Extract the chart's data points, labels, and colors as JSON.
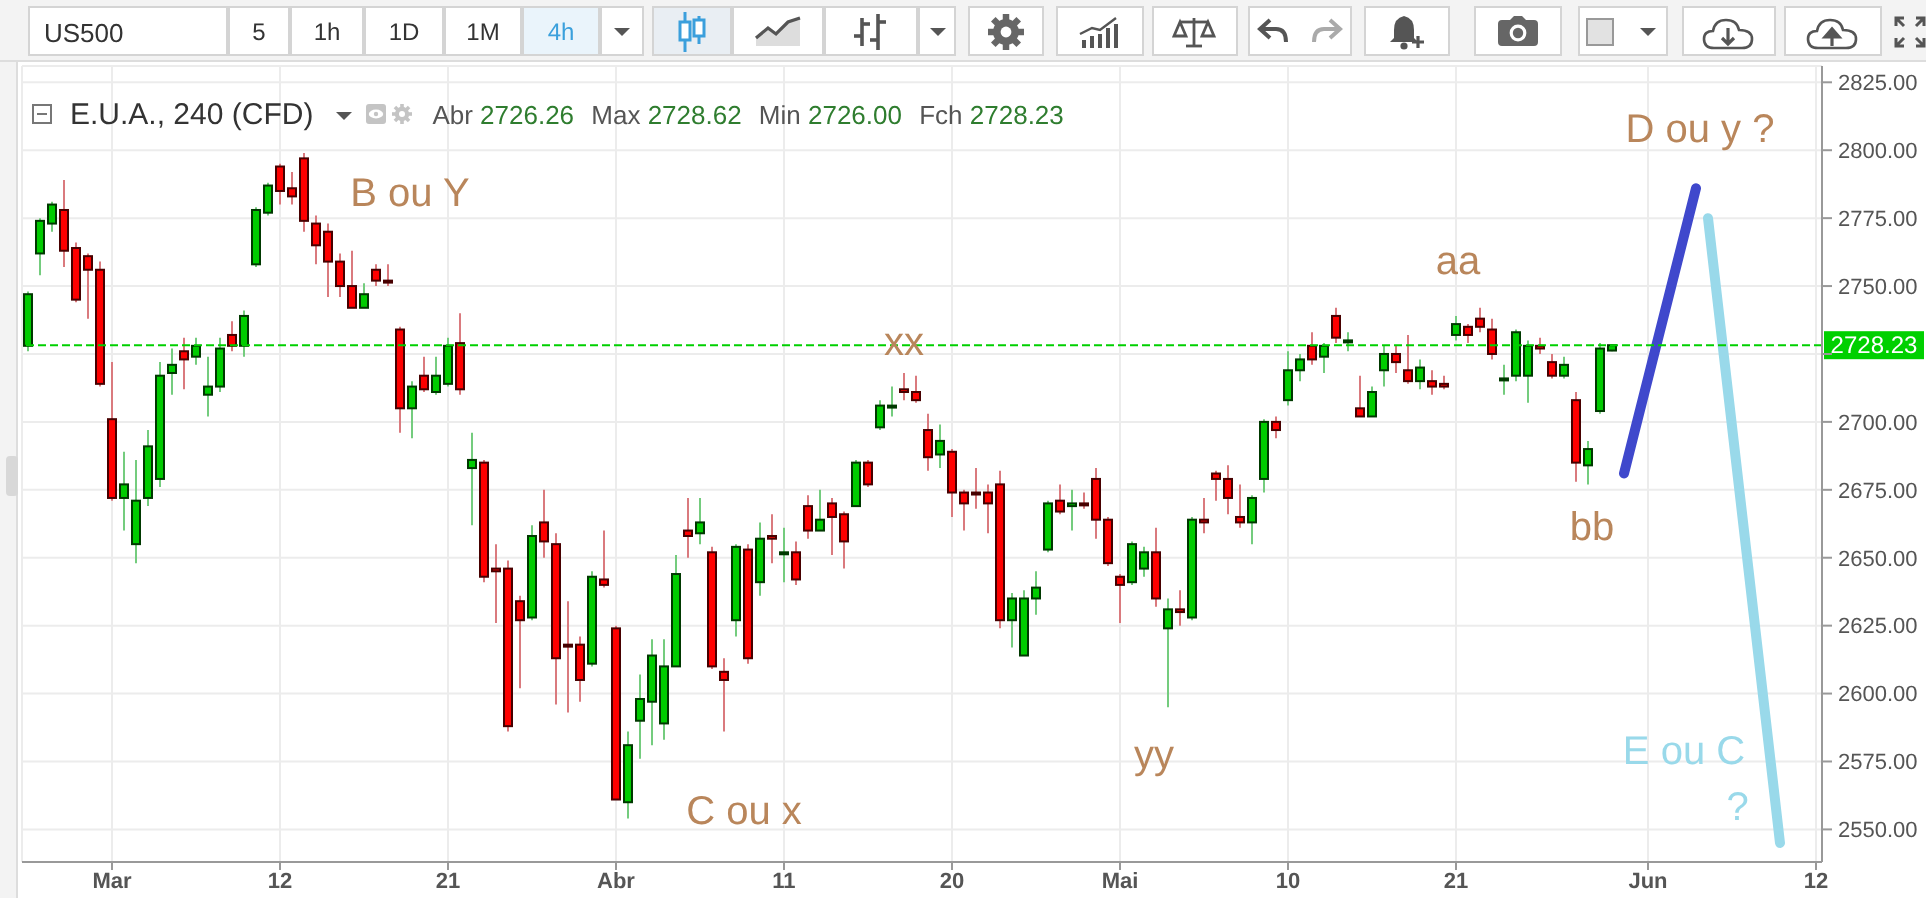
{
  "chart_data": {
    "type": "candlestick",
    "title": "E.U.A., 240 (CFD)",
    "categories": [
      null,
      null,
      null,
      null,
      null,
      null,
      null,
      "Mar",
      null,
      null,
      null,
      null,
      null,
      null,
      null,
      null,
      null,
      null,
      null,
      null,
      null,
      "12",
      null,
      null,
      null,
      null,
      null,
      null,
      null,
      null,
      null,
      null,
      null,
      null,
      null,
      "21",
      null,
      null,
      null,
      null,
      null,
      null,
      null,
      null,
      null,
      null,
      null,
      null,
      null,
      "Abr",
      null,
      null,
      null,
      null,
      null,
      null,
      null,
      null,
      null,
      null,
      null,
      null,
      null,
      "11",
      null,
      null,
      null,
      null,
      null,
      null,
      null,
      null,
      null,
      null,
      null,
      null,
      null,
      "20",
      null,
      null,
      null,
      null,
      null,
      null,
      null,
      null,
      null,
      null,
      null,
      null,
      null,
      "Mai",
      null,
      null,
      null,
      null,
      null,
      null,
      null,
      null,
      null,
      null,
      null,
      null,
      null,
      "10",
      null,
      null,
      null,
      null,
      null,
      null,
      null,
      null,
      null,
      null,
      null,
      null,
      null,
      "21",
      null,
      null,
      null,
      null,
      null,
      null,
      null,
      null,
      null,
      null,
      null,
      null,
      null,
      null,
      null,
      "Jun",
      null,
      null,
      null,
      null,
      null,
      null,
      null,
      null,
      null,
      null,
      null,
      null,
      null,
      "12"
    ],
    "ohlc": [
      [
        2728,
        2748,
        2726,
        2747
      ],
      [
        2762,
        2775,
        2754,
        2774
      ],
      [
        2773,
        2781,
        2770,
        2780
      ],
      [
        2778,
        2789,
        2757,
        2763
      ],
      [
        2764,
        2766,
        2744,
        2745
      ],
      [
        2761,
        2762,
        2738,
        2756
      ],
      [
        2756,
        2759,
        2713,
        2714
      ],
      [
        2701,
        2722,
        2671,
        2672
      ],
      [
        2672,
        2689,
        2660,
        2677
      ],
      [
        2655,
        2686,
        2648,
        2671
      ],
      [
        2672,
        2697,
        2669,
        2691
      ],
      [
        2679,
        2722,
        2676,
        2717
      ],
      [
        2718,
        2727,
        2710,
        2721
      ],
      [
        2726,
        2731,
        2712,
        2723
      ],
      [
        2724,
        2731,
        2721,
        2728
      ],
      [
        2710,
        2724,
        2702,
        2713
      ],
      [
        2713,
        2731,
        2711,
        2727
      ],
      [
        2732,
        2737,
        2726,
        2728
      ],
      [
        2728,
        2741,
        2724,
        2739
      ],
      [
        2758,
        2779,
        2757,
        2778
      ],
      [
        2777,
        2788,
        2776,
        2787
      ],
      [
        2794,
        2795,
        2780,
        2785
      ],
      [
        2786,
        2792,
        2780,
        2783
      ],
      [
        2797,
        2799,
        2770,
        2774
      ],
      [
        2773,
        2776,
        2758,
        2765
      ],
      [
        2770,
        2773,
        2746,
        2759
      ],
      [
        2759,
        2762,
        2746,
        2750
      ],
      [
        2750,
        2763,
        2742,
        2742
      ],
      [
        2742,
        2751,
        2742,
        2747
      ],
      [
        2756,
        2758,
        2750,
        2752
      ],
      [
        2752,
        2758,
        2750,
        2752
      ],
      [
        2734,
        2735,
        2696,
        2705
      ],
      [
        2705,
        2715,
        2694,
        2713
      ],
      [
        2717,
        2724,
        2711,
        2712
      ],
      [
        2711,
        2724,
        2710,
        2717
      ],
      [
        2714,
        2731,
        2713,
        2728
      ],
      [
        2729,
        2740,
        2710,
        2712
      ],
      [
        2683,
        2696,
        2662,
        2686
      ],
      [
        2685,
        2686,
        2641,
        2643
      ],
      [
        2646,
        2655,
        2626,
        2645
      ],
      [
        2646,
        2649,
        2586,
        2588
      ],
      [
        2634,
        2636,
        2602,
        2627
      ],
      [
        2628,
        2662,
        2627,
        2658
      ],
      [
        2663,
        2675,
        2650,
        2656
      ],
      [
        2655,
        2659,
        2596,
        2613
      ],
      [
        2618,
        2634,
        2593,
        2618
      ],
      [
        2618,
        2621,
        2597,
        2605
      ],
      [
        2611,
        2645,
        2610,
        2643
      ],
      [
        2642,
        2660,
        2639,
        2640
      ],
      [
        2624,
        2625,
        2561,
        2561
      ],
      [
        2560,
        2586,
        2554,
        2581
      ],
      [
        2590,
        2607,
        2576,
        2598
      ],
      [
        2597,
        2620,
        2581,
        2614
      ],
      [
        2589,
        2620,
        2583,
        2610
      ],
      [
        2610,
        2651,
        2610,
        2644
      ],
      [
        2660,
        2672,
        2650,
        2658
      ],
      [
        2659,
        2672,
        2655,
        2663
      ],
      [
        2652,
        2654,
        2609,
        2610
      ],
      [
        2608,
        2613,
        2586,
        2605
      ],
      [
        2627,
        2655,
        2621,
        2654
      ],
      [
        2653,
        2655,
        2611,
        2613
      ],
      [
        2641,
        2663,
        2636,
        2657
      ],
      [
        2658,
        2666,
        2648,
        2657
      ],
      [
        2652,
        2661,
        2641,
        2652
      ],
      [
        2652,
        2656,
        2640,
        2642
      ],
      [
        2669,
        2673,
        2657,
        2660
      ],
      [
        2660,
        2675,
        2660,
        2664
      ],
      [
        2670,
        2672,
        2651,
        2665
      ],
      [
        2666,
        2667,
        2646,
        2656
      ],
      [
        2669,
        2686,
        2669,
        2685
      ],
      [
        2685,
        2686,
        2676,
        2677
      ],
      [
        2698,
        2708,
        2697,
        2706
      ],
      [
        2706,
        2713,
        2702,
        2706
      ],
      [
        2712,
        2718,
        2708,
        2711
      ],
      [
        2711,
        2717,
        2707,
        2708
      ],
      [
        2697,
        2703,
        2682,
        2687
      ],
      [
        2688,
        2699,
        2683,
        2693
      ],
      [
        2689,
        2690,
        2665,
        2674
      ],
      [
        2674,
        2675,
        2660,
        2670
      ],
      [
        2674,
        2683,
        2668,
        2674
      ],
      [
        2674,
        2677,
        2659,
        2670
      ],
      [
        2677,
        2682,
        2624,
        2627
      ],
      [
        2627,
        2637,
        2617,
        2635
      ],
      [
        2614,
        2638,
        2614,
        2635
      ],
      [
        2635,
        2645,
        2629,
        2639
      ],
      [
        2653,
        2671,
        2652,
        2670
      ],
      [
        2671,
        2677,
        2666,
        2667
      ],
      [
        2669,
        2675,
        2660,
        2670
      ],
      [
        2670,
        2674,
        2668,
        2670
      ],
      [
        2679,
        2683,
        2657,
        2664
      ],
      [
        2664,
        2665,
        2647,
        2648
      ],
      [
        2643,
        2644,
        2626,
        2640
      ],
      [
        2641,
        2656,
        2640,
        2655
      ],
      [
        2646,
        2654,
        2643,
        2652
      ],
      [
        2652,
        2661,
        2632,
        2635
      ],
      [
        2624,
        2635,
        2595,
        2631
      ],
      [
        2631,
        2638,
        2625,
        2630
      ],
      [
        2628,
        2665,
        2627,
        2664
      ],
      [
        2664,
        2672,
        2659,
        2663
      ],
      [
        2681,
        2682,
        2671,
        2679
      ],
      [
        2679,
        2684,
        2666,
        2672
      ],
      [
        2665,
        2677,
        2661,
        2663
      ],
      [
        2663,
        2673,
        2655,
        2672
      ],
      [
        2679,
        2701,
        2674,
        2700
      ],
      [
        2700,
        2702,
        2694,
        2697
      ],
      [
        2708,
        2726,
        2706,
        2719
      ],
      [
        2719,
        2725,
        2715,
        2723
      ],
      [
        2728,
        2733,
        2721,
        2723
      ],
      [
        2724,
        2729,
        2718,
        2728
      ],
      [
        2739,
        2742,
        2729,
        2731
      ],
      [
        2730,
        2733,
        2726,
        2730
      ],
      [
        2705,
        2717,
        2702,
        2702
      ],
      [
        2702,
        2713,
        2702,
        2711
      ],
      [
        2719,
        2728,
        2713,
        2725
      ],
      [
        2725,
        2728,
        2718,
        2722
      ],
      [
        2719,
        2732,
        2714,
        2715
      ],
      [
        2715,
        2723,
        2712,
        2720
      ],
      [
        2715,
        2719,
        2710,
        2713
      ],
      [
        2714,
        2717,
        2712,
        2713
      ],
      [
        2732,
        2739,
        2730,
        2736
      ],
      [
        2735,
        2736,
        2729,
        2732
      ],
      [
        2738,
        2742,
        2733,
        2735
      ],
      [
        2734,
        2738,
        2723,
        2725
      ],
      [
        2716,
        2721,
        2710,
        2716
      ],
      [
        2717,
        2734,
        2715,
        2733
      ],
      [
        2717,
        2730,
        2707,
        2728
      ],
      [
        2728,
        2731,
        2725,
        2727
      ],
      [
        2722,
        2725,
        2716,
        2717
      ],
      [
        2717,
        2724,
        2716,
        2721
      ],
      [
        2708,
        2711,
        2678,
        2685
      ],
      [
        2684,
        2693,
        2677,
        2690
      ],
      [
        2704,
        2729,
        2703,
        2727
      ],
      [
        2726.26,
        2728.62,
        2726.0,
        2728.23
      ],
      null,
      null,
      null,
      null,
      null,
      null,
      null,
      null,
      null,
      null,
      null,
      null,
      null,
      null,
      null,
      null,
      null
    ],
    "colors": [
      "#00cc00",
      "#00cc00",
      "#00cc00",
      "#ff0000",
      "#ff0000",
      "#ff0000",
      "#ff0000",
      "#ff0000",
      "#00cc00",
      "#00cc00",
      "#00cc00",
      "#00cc00",
      "#00cc00",
      "#ff0000",
      "#00cc00",
      "#00cc00",
      "#00cc00",
      "#ff0000",
      "#00cc00",
      "#00cc00",
      "#00cc00",
      "#ff0000",
      "#ff0000",
      "#ff0000",
      "#ff0000",
      "#ff0000",
      "#ff0000",
      "#ff0000",
      "#00cc00",
      "#ff0000",
      "#ff0000",
      "#ff0000",
      "#00cc00",
      "#ff0000",
      "#00cc00",
      "#00cc00",
      "#ff0000",
      "#00cc00",
      "#ff0000",
      "#ff0000",
      "#ff0000",
      "#ff0000",
      "#00cc00",
      "#ff0000",
      "#ff0000",
      "#ff0000",
      "#ff0000",
      "#00cc00",
      "#ff0000",
      "#ff0000",
      "#00cc00",
      "#00cc00",
      "#00cc00",
      "#00cc00",
      "#00cc00",
      "#ff0000",
      "#00cc00",
      "#ff0000",
      "#ff0000",
      "#00cc00",
      "#ff0000",
      "#00cc00",
      "#ff0000",
      "#00cc00",
      "#ff0000",
      "#ff0000",
      "#00cc00",
      "#ff0000",
      "#ff0000",
      "#00cc00",
      "#ff0000",
      "#00cc00",
      "#00cc00",
      "#ff0000",
      "#ff0000",
      "#ff0000",
      "#00cc00",
      "#ff0000",
      "#ff0000",
      "#ff0000",
      "#ff0000",
      "#ff0000",
      "#00cc00",
      "#00cc00",
      "#00cc00",
      "#00cc00",
      "#ff0000",
      "#00cc00",
      "#ff0000",
      "#ff0000",
      "#ff0000",
      "#ff0000",
      "#00cc00",
      "#00cc00",
      "#ff0000",
      "#00cc00",
      "#ff0000",
      "#00cc00",
      "#ff0000",
      "#ff0000",
      "#ff0000",
      "#ff0000",
      "#00cc00",
      "#00cc00",
      "#ff0000",
      "#00cc00",
      "#00cc00",
      "#ff0000",
      "#00cc00",
      "#ff0000",
      "#00cc00",
      "#ff0000",
      "#00cc00",
      "#00cc00",
      "#ff0000",
      "#ff0000",
      "#00cc00",
      "#ff0000",
      "#ff0000",
      "#00cc00",
      "#ff0000",
      "#ff0000",
      "#ff0000",
      "#00cc00",
      "#00cc00",
      "#00cc00",
      "#ff0000",
      "#ff0000",
      "#00cc00",
      "#ff0000",
      "#00cc00",
      "#00cc00",
      "#00cc00",
      null,
      null,
      null,
      null,
      null,
      null,
      null,
      null,
      null,
      null,
      null,
      null,
      null,
      null,
      null,
      null,
      null
    ],
    "series": [
      {
        "type": "line",
        "color": "#3f48cc",
        "values": [
          null,
          null,
          null,
          null,
          null,
          null,
          null,
          null,
          null,
          null,
          null,
          null,
          null,
          null,
          null,
          null,
          null,
          null,
          null,
          null,
          null,
          null,
          null,
          null,
          null,
          null,
          null,
          null,
          null,
          null,
          null,
          null,
          null,
          null,
          null,
          null,
          null,
          null,
          null,
          null,
          null,
          null,
          null,
          null,
          null,
          null,
          null,
          null,
          null,
          null,
          null,
          null,
          null,
          null,
          null,
          null,
          null,
          null,
          null,
          null,
          null,
          null,
          null,
          null,
          null,
          null,
          null,
          null,
          null,
          null,
          null,
          null,
          null,
          null,
          null,
          null,
          null,
          null,
          null,
          null,
          null,
          null,
          null,
          null,
          null,
          null,
          null,
          null,
          null,
          null,
          null,
          null,
          null,
          null,
          null,
          null,
          null,
          null,
          null,
          null,
          null,
          null,
          null,
          null,
          null,
          null,
          null,
          null,
          null,
          null,
          null,
          null,
          null,
          null,
          null,
          null,
          null,
          null,
          null,
          null,
          null,
          null,
          null,
          null,
          null,
          null,
          null,
          null,
          null,
          null,
          null,
          null,
          null,
          2681,
          null,
          null,
          null,
          null,
          null,
          2786,
          null,
          null,
          null,
          null,
          null,
          null,
          null,
          null,
          null,
          null
        ]
      },
      {
        "type": "line",
        "color": "#99d9ea",
        "values": [
          null,
          null,
          null,
          null,
          null,
          null,
          null,
          null,
          null,
          null,
          null,
          null,
          null,
          null,
          null,
          null,
          null,
          null,
          null,
          null,
          null,
          null,
          null,
          null,
          null,
          null,
          null,
          null,
          null,
          null,
          null,
          null,
          null,
          null,
          null,
          null,
          null,
          null,
          null,
          null,
          null,
          null,
          null,
          null,
          null,
          null,
          null,
          null,
          null,
          null,
          null,
          null,
          null,
          null,
          null,
          null,
          null,
          null,
          null,
          null,
          null,
          null,
          null,
          null,
          null,
          null,
          null,
          null,
          null,
          null,
          null,
          null,
          null,
          null,
          null,
          null,
          null,
          null,
          null,
          null,
          null,
          null,
          null,
          null,
          null,
          null,
          null,
          null,
          null,
          null,
          null,
          null,
          null,
          null,
          null,
          null,
          null,
          null,
          null,
          null,
          null,
          null,
          null,
          null,
          null,
          null,
          null,
          null,
          null,
          null,
          null,
          null,
          null,
          null,
          null,
          null,
          null,
          null,
          null,
          null,
          null,
          null,
          null,
          null,
          null,
          null,
          null,
          null,
          null,
          null,
          null,
          null,
          null,
          null,
          null,
          null,
          null,
          null,
          null,
          null,
          2775,
          null,
          null,
          null,
          null,
          null,
          2545,
          null,
          null,
          null
        ]
      }
    ],
    "ylim": [
      2538,
      2831
    ],
    "yticks": [
      {
        "value": 2550,
        "label": "2550.00"
      },
      {
        "value": 2575,
        "label": "2575.00"
      },
      {
        "value": 2600,
        "label": "2600.00"
      },
      {
        "value": 2625,
        "label": "2625.00"
      },
      {
        "value": 2650,
        "label": "2650.00"
      },
      {
        "value": 2675,
        "label": "2675.00"
      },
      {
        "value": 2700,
        "label": "2700.00"
      },
      {
        "value": 2725,
        "label": null
      },
      {
        "value": 2750,
        "label": "2750.00"
      },
      {
        "value": 2775,
        "label": "2775.00"
      },
      {
        "value": 2800,
        "label": "2800.00"
      },
      {
        "value": 2825,
        "label": "2825.00"
      }
    ],
    "grid": true,
    "ref_lines": [
      {
        "axis": "y",
        "value": 2728.23,
        "label": "2728.23",
        "color": "#00d000",
        "line_style": "dashed"
      }
    ],
    "annotations": [
      "US500",
      "5",
      "1h",
      "1D",
      "1M",
      "4h",
      "Abr 2726.26 Max 2728.62 Min 2726.00 Fch 2728.23",
      "B ou Y",
      {
        "text": "xx",
        "y": 2718
      },
      "C ou x",
      "yy",
      {
        "text": "aa",
        "y": 2742
      },
      {
        "text": "bb",
        "y": 2677
      },
      {
        "text": "D ou y ?",
        "y": 2786
      },
      "E ou C ?"
    ]
  }
}
